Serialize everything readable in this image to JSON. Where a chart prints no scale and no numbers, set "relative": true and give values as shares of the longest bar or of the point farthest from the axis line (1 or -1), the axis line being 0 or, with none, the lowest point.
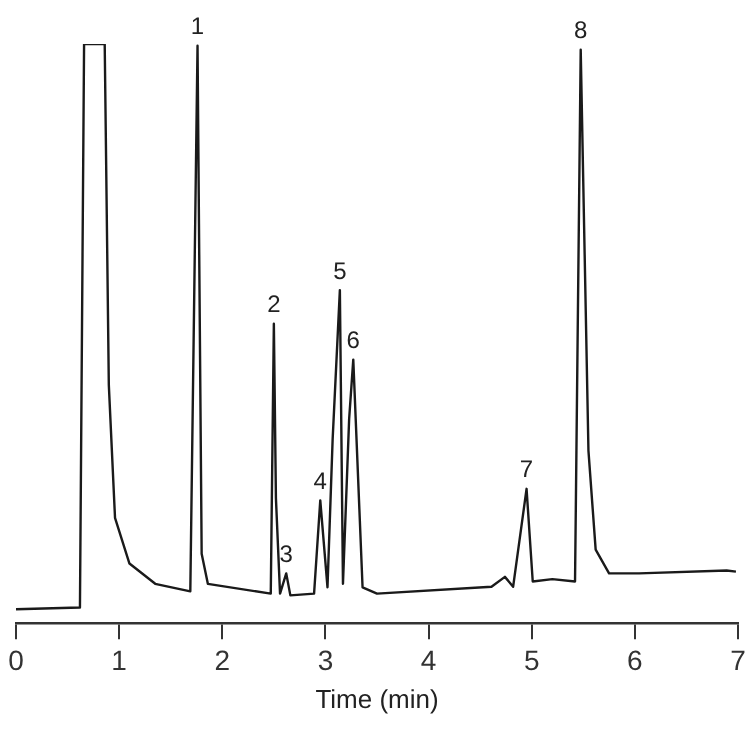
{
  "chart_data": {
    "type": "line",
    "xlabel": "Time (min)",
    "relative": true,
    "xlim": [
      0,
      7
    ],
    "xticks": [
      0,
      1,
      2,
      3,
      4,
      5,
      6,
      7
    ],
    "series": [
      {
        "color": "#1a1a1a",
        "x": [
          0,
          0.62,
          0.66,
          0.86,
          0.9,
          0.96,
          1.1,
          1.35,
          1.69,
          1.76,
          1.8,
          1.86,
          2.47,
          2.5,
          2.52,
          2.56,
          2.62,
          2.66,
          2.89,
          2.95,
          3.02,
          3.07,
          3.14,
          3.17,
          3.23,
          3.27,
          3.36,
          3.5,
          4.61,
          4.74,
          4.82,
          4.95,
          5.01,
          5.2,
          5.42,
          5.475,
          5.55,
          5.62,
          5.75,
          6.04,
          6.89,
          6.98
        ],
        "values": [
          0.024,
          0.027,
          1.0,
          1.0,
          0.411,
          0.182,
          0.103,
          0.068,
          0.055,
          0.997,
          0.12,
          0.068,
          0.051,
          0.517,
          0.216,
          0.051,
          0.086,
          0.048,
          0.051,
          0.212,
          0.062,
          0.318,
          0.575,
          0.068,
          0.353,
          0.455,
          0.062,
          0.051,
          0.063,
          0.08,
          0.063,
          0.232,
          0.072,
          0.076,
          0.072,
          0.99,
          0.298,
          0.127,
          0.086,
          0.086,
          0.091,
          0.089
        ]
      }
    ],
    "annotations": [
      {
        "text": "1",
        "x": 1.76,
        "y": 0.997
      },
      {
        "text": "2",
        "x": 2.5,
        "y": 0.517
      },
      {
        "text": "3",
        "x": 2.62,
        "y": 0.086
      },
      {
        "text": "4",
        "x": 2.95,
        "y": 0.212
      },
      {
        "text": "5",
        "x": 3.14,
        "y": 0.575
      },
      {
        "text": "6",
        "x": 3.27,
        "y": 0.455
      },
      {
        "text": "7",
        "x": 4.95,
        "y": 0.232
      },
      {
        "text": "8",
        "x": 5.475,
        "y": 0.99
      }
    ]
  }
}
